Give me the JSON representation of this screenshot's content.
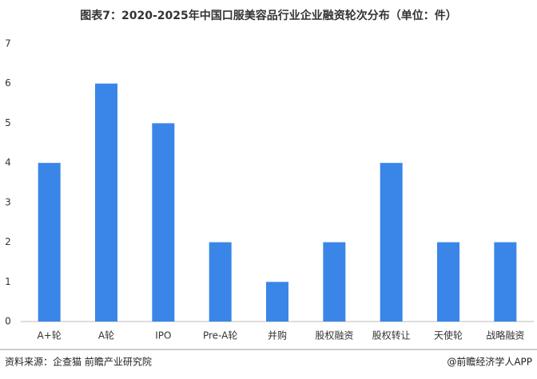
{
  "chart_data": {
    "type": "bar",
    "title": "图表7：2020-2025年中国口服美容品行业企业融资轮次分布（单位：件）",
    "categories": [
      "A+轮",
      "A轮",
      "IPO",
      "Pre-A轮",
      "并购",
      "股权融资",
      "股权转让",
      "天使轮",
      "战略融资"
    ],
    "values": [
      4,
      6,
      5,
      2,
      1,
      2,
      4,
      2,
      2
    ],
    "color": "#3a86e8",
    "ylim": [
      0,
      7
    ],
    "yticks": [
      0,
      1,
      2,
      3,
      4,
      5,
      6,
      7
    ],
    "grid": false,
    "source": "资料来源：企查猫 前瞻产业研究院",
    "logo": "@前瞻经济学人APP"
  }
}
